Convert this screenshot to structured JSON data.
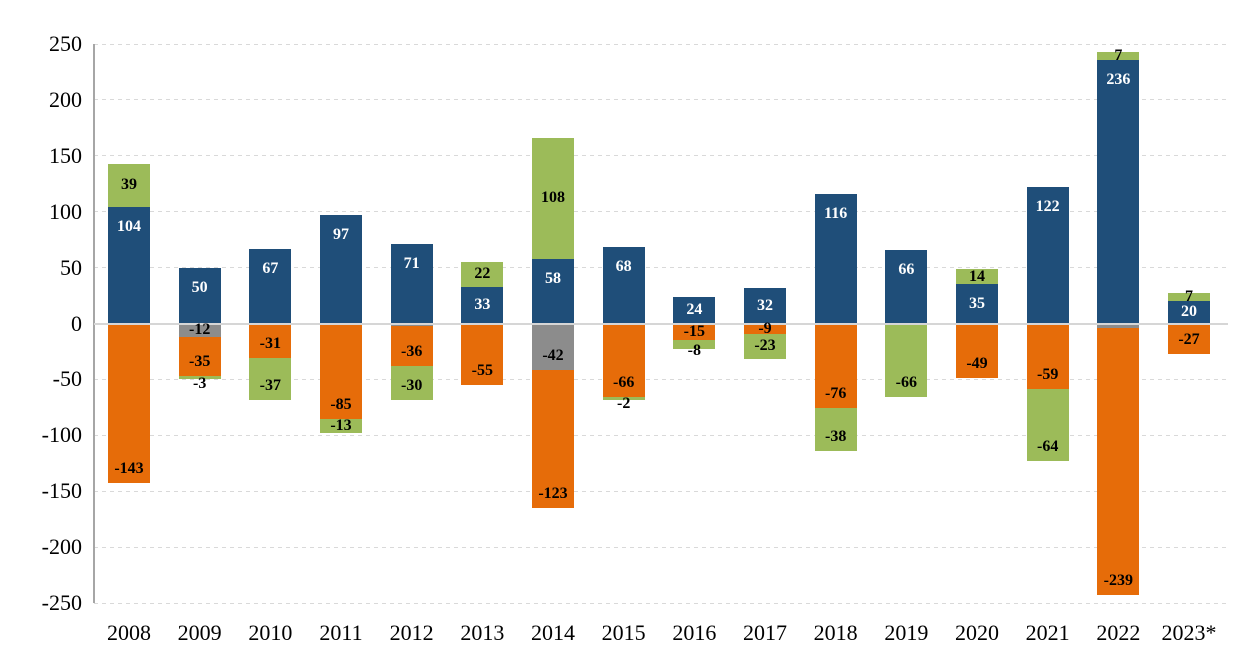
{
  "chart_data": {
    "type": "bar",
    "stacked": true,
    "title": "",
    "xlabel": "",
    "ylabel": "",
    "ylim": [
      -250,
      250
    ],
    "grid": true,
    "legend": false,
    "y_ticks": [
      250,
      200,
      150,
      100,
      50,
      0,
      -50,
      -100,
      -150,
      -200,
      -250
    ],
    "categories": [
      "2008",
      "2009",
      "2010",
      "2011",
      "2012",
      "2013",
      "2014",
      "2015",
      "2016",
      "2017",
      "2018",
      "2019",
      "2020",
      "2021",
      "2022",
      "2023*"
    ],
    "series": [
      {
        "name": "blue",
        "color": "#1F4E79",
        "label_color": "#FFFFFF",
        "values": [
          104,
          50,
          67,
          97,
          71,
          33,
          58,
          68,
          24,
          32,
          116,
          66,
          35,
          122,
          236,
          20
        ],
        "labels": [
          "104",
          "50",
          "67",
          "97",
          "71",
          "33",
          "58",
          "68",
          "24",
          "32",
          "116",
          "66",
          "35",
          "122",
          "236",
          "20"
        ]
      },
      {
        "name": "gray",
        "color": "#8C8C8C",
        "label_color": "#000000",
        "values": [
          0,
          -12,
          0,
          0,
          -2,
          0,
          -42,
          0,
          0,
          0,
          0,
          0,
          0,
          0,
          -4,
          0
        ],
        "labels": [
          "",
          "-12",
          "",
          "",
          "",
          "",
          "-42",
          "",
          "",
          "",
          "",
          "",
          "",
          "",
          "",
          ""
        ]
      },
      {
        "name": "orange",
        "color": "#E66C09",
        "label_color": "#000000",
        "values": [
          -143,
          -35,
          -31,
          -85,
          -36,
          -55,
          -123,
          -66,
          -15,
          -9,
          -76,
          0,
          -49,
          -59,
          -239,
          -27
        ],
        "labels": [
          "-143",
          "-35",
          "-31",
          "-85",
          "-36",
          "-55",
          "-123",
          "-66",
          "-15",
          "-9",
          "-76",
          "",
          "-49",
          "-59",
          "-239",
          "-27"
        ]
      },
      {
        "name": "green",
        "color": "#9CBB59",
        "label_color": "#000000",
        "values": [
          39,
          -3,
          -37,
          -13,
          -30,
          22,
          108,
          -2,
          -8,
          -23,
          -38,
          -66,
          14,
          -64,
          7,
          7
        ],
        "labels": [
          "39",
          "-3",
          "-37",
          "-13",
          "-30",
          "22",
          "108",
          "-2",
          "-8",
          "-23",
          "-38",
          "-66",
          "14",
          "-64",
          "7",
          "7"
        ]
      }
    ]
  }
}
